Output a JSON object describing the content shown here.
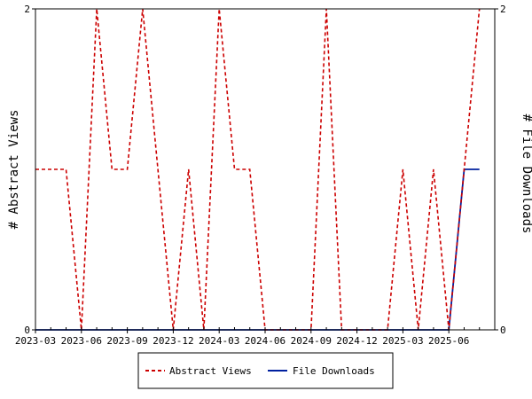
{
  "chart_data": {
    "type": "line",
    "y_left_label": "# Abstract Views",
    "y_right_label": "# File Downloads",
    "y_left_ticks": [
      "0",
      "2"
    ],
    "y_right_ticks": [
      "0",
      "2"
    ],
    "ylim": [
      0,
      2
    ],
    "x_tick_labels": [
      "2023-03",
      "2023-06",
      "2023-09",
      "2023-12",
      "2024-03",
      "2024-06",
      "2024-09",
      "2024-12",
      "2025-03",
      "2025-06"
    ],
    "x_start": "2023-03",
    "x_end": "2025-09",
    "legend": {
      "position": "bottom"
    },
    "series": [
      {
        "name": "Abstract Views",
        "color": "#cc0000",
        "style": "dashed",
        "axis": "left",
        "x": [
          "2023-03",
          "2023-04",
          "2023-05",
          "2023-06",
          "2023-07",
          "2023-08",
          "2023-09",
          "2023-10",
          "2023-11",
          "2023-12",
          "2024-01",
          "2024-02",
          "2024-03",
          "2024-04",
          "2024-05",
          "2024-06",
          "2024-07",
          "2024-08",
          "2024-09",
          "2024-10",
          "2024-11",
          "2024-12",
          "2025-01",
          "2025-02",
          "2025-03",
          "2025-04",
          "2025-05",
          "2025-06",
          "2025-07",
          "2025-08"
        ],
        "values": [
          1,
          1,
          1,
          0,
          2,
          1,
          1,
          2,
          1,
          0,
          1,
          0,
          2,
          1,
          1,
          0,
          0,
          0,
          0,
          2,
          0,
          0,
          0,
          0,
          1,
          0,
          1,
          0,
          1,
          2
        ]
      },
      {
        "name": "File Downloads",
        "color": "#00209f",
        "style": "solid",
        "axis": "right",
        "x": [
          "2023-03",
          "2023-04",
          "2023-05",
          "2023-06",
          "2023-07",
          "2023-08",
          "2023-09",
          "2023-10",
          "2023-11",
          "2023-12",
          "2024-01",
          "2024-02",
          "2024-03",
          "2024-04",
          "2024-05",
          "2024-06",
          "2024-07",
          "2024-08",
          "2024-09",
          "2024-10",
          "2024-11",
          "2024-12",
          "2025-01",
          "2025-02",
          "2025-03",
          "2025-04",
          "2025-05",
          "2025-06",
          "2025-07",
          "2025-08"
        ],
        "values": [
          0,
          0,
          0,
          0,
          0,
          0,
          0,
          0,
          0,
          0,
          0,
          0,
          0,
          0,
          0,
          0,
          0,
          0,
          0,
          0,
          0,
          0,
          0,
          0,
          0,
          0,
          0,
          0,
          1,
          1
        ]
      }
    ]
  }
}
